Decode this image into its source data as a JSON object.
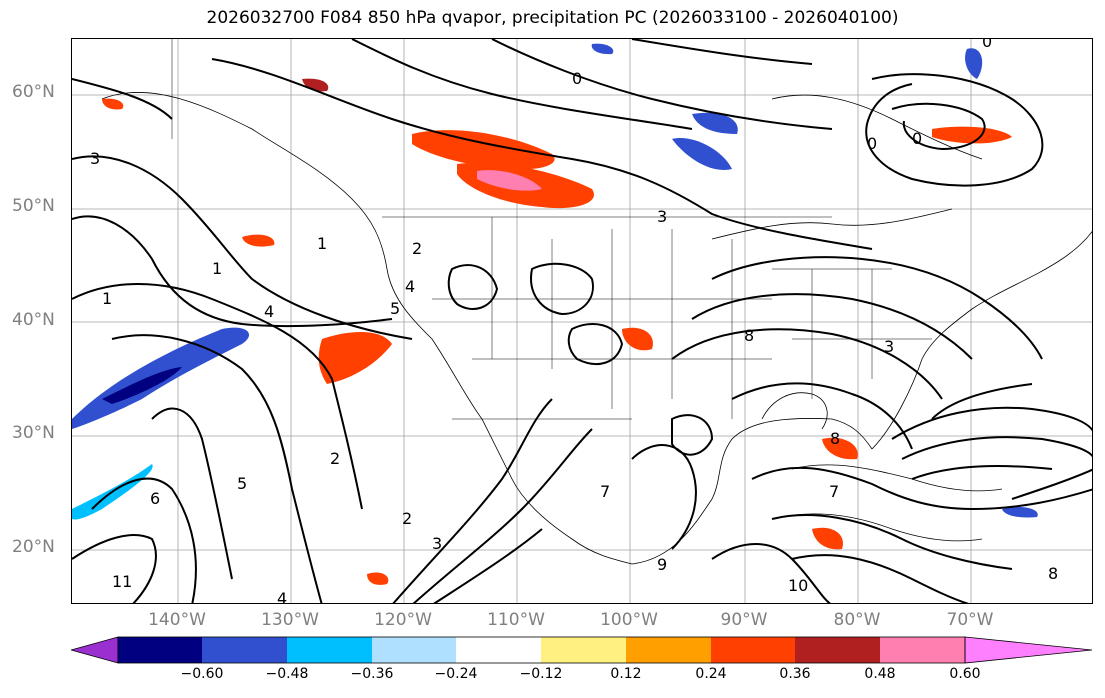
{
  "title": "2026032700 F084 850 hPa qvapor, precipitation PC (2026033100 - 2026040100)",
  "lat_labels": [
    "60°N",
    "50°N",
    "40°N",
    "30°N",
    "20°N"
  ],
  "lon_labels": [
    "140°W",
    "130°W",
    "120°W",
    "110°W",
    "100°W",
    "90°W",
    "80°W",
    "70°W"
  ],
  "colorbar": {
    "ticks": [
      "−0.60",
      "−0.48",
      "−0.36",
      "−0.24",
      "−0.12",
      "0.12",
      "0.24",
      "0.36",
      "0.48",
      "0.60"
    ],
    "colors": [
      "#9b30d0",
      "#000080",
      "#3050d0",
      "#00bfff",
      "#b0e0ff",
      "#ffffff",
      "#fff080",
      "#ffa000",
      "#ff4000",
      "#b02020",
      "#ff80b0",
      "#ff80ff"
    ]
  },
  "contour_labels": [
    "0",
    "0",
    "0",
    "0",
    "1",
    "1",
    "1",
    "2",
    "2",
    "2",
    "3",
    "3",
    "3",
    "3",
    "4",
    "4",
    "4",
    "5",
    "5",
    "6",
    "7",
    "7",
    "8",
    "8",
    "8",
    "9",
    "10",
    "11"
  ]
}
